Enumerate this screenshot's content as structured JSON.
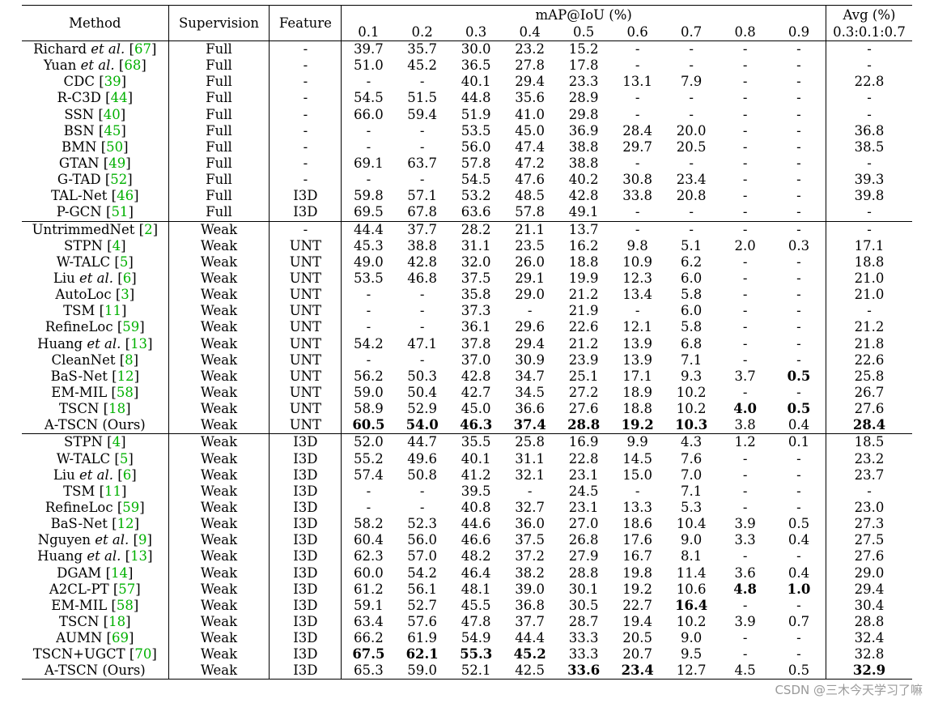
{
  "headers": {
    "method": "Method",
    "supervision": "Supervision",
    "feature": "Feature",
    "map": "mAP@IoU (%)",
    "iou": [
      "0.1",
      "0.2",
      "0.3",
      "0.4",
      "0.5",
      "0.6",
      "0.7",
      "0.8",
      "0.9"
    ],
    "avg_line1": "Avg (%)",
    "avg_line2": "0.3:0.1:0.7"
  },
  "groups": [
    [
      {
        "m": "Richard",
        "et": true,
        "ref": "67",
        "s": "Full",
        "f": "-",
        "v": [
          "39.7",
          "35.7",
          "30.0",
          "23.2",
          "15.2",
          "-",
          "-",
          "-",
          "-",
          "-"
        ]
      },
      {
        "m": "Yuan",
        "et": true,
        "ref": "68",
        "s": "Full",
        "f": "-",
        "v": [
          "51.0",
          "45.2",
          "36.5",
          "27.8",
          "17.8",
          "-",
          "-",
          "-",
          "-",
          "-"
        ]
      },
      {
        "m": "CDC",
        "ref": "39",
        "s": "Full",
        "f": "-",
        "v": [
          "-",
          "-",
          "40.1",
          "29.4",
          "23.3",
          "13.1",
          "7.9",
          "-",
          "-",
          "22.8"
        ]
      },
      {
        "m": "R-C3D",
        "ref": "44",
        "s": "Full",
        "f": "-",
        "v": [
          "54.5",
          "51.5",
          "44.8",
          "35.6",
          "28.9",
          "-",
          "-",
          "-",
          "-",
          "-"
        ]
      },
      {
        "m": "SSN",
        "ref": "40",
        "s": "Full",
        "f": "-",
        "v": [
          "66.0",
          "59.4",
          "51.9",
          "41.0",
          "29.8",
          "-",
          "-",
          "-",
          "-",
          "-"
        ]
      },
      {
        "m": "BSN",
        "ref": "45",
        "s": "Full",
        "f": "-",
        "v": [
          "-",
          "-",
          "53.5",
          "45.0",
          "36.9",
          "28.4",
          "20.0",
          "-",
          "-",
          "36.8"
        ]
      },
      {
        "m": "BMN",
        "ref": "50",
        "s": "Full",
        "f": "-",
        "v": [
          "-",
          "-",
          "56.0",
          "47.4",
          "38.8",
          "29.7",
          "20.5",
          "-",
          "-",
          "38.5"
        ]
      },
      {
        "m": "GTAN",
        "ref": "49",
        "s": "Full",
        "f": "-",
        "v": [
          "69.1",
          "63.7",
          "57.8",
          "47.2",
          "38.8",
          "-",
          "-",
          "-",
          "-",
          "-"
        ]
      },
      {
        "m": "G-TAD",
        "ref": "52",
        "s": "Full",
        "f": "-",
        "v": [
          "-",
          "-",
          "54.5",
          "47.6",
          "40.2",
          "30.8",
          "23.4",
          "-",
          "-",
          "39.3"
        ]
      },
      {
        "m": "TAL-Net",
        "ref": "46",
        "s": "Full",
        "f": "I3D",
        "v": [
          "59.8",
          "57.1",
          "53.2",
          "48.5",
          "42.8",
          "33.8",
          "20.8",
          "-",
          "-",
          "39.8"
        ]
      },
      {
        "m": "P-GCN",
        "ref": "51",
        "s": "Full",
        "f": "I3D",
        "v": [
          "69.5",
          "67.8",
          "63.6",
          "57.8",
          "49.1",
          "-",
          "-",
          "-",
          "-",
          "-"
        ]
      }
    ],
    [
      {
        "m": "UntrimmedNet",
        "ref": "2",
        "s": "Weak",
        "f": "-",
        "v": [
          "44.4",
          "37.7",
          "28.2",
          "21.1",
          "13.7",
          "-",
          "-",
          "-",
          "-",
          "-"
        ]
      },
      {
        "m": "STPN",
        "ref": "4",
        "s": "Weak",
        "f": "UNT",
        "v": [
          "45.3",
          "38.8",
          "31.1",
          "23.5",
          "16.2",
          "9.8",
          "5.1",
          "2.0",
          "0.3",
          "17.1"
        ]
      },
      {
        "m": "W-TALC",
        "ref": "5",
        "s": "Weak",
        "f": "UNT",
        "v": [
          "49.0",
          "42.8",
          "32.0",
          "26.0",
          "18.8",
          "10.9",
          "6.2",
          "-",
          "-",
          "18.8"
        ]
      },
      {
        "m": "Liu",
        "et": true,
        "ref": "6",
        "s": "Weak",
        "f": "UNT",
        "v": [
          "53.5",
          "46.8",
          "37.5",
          "29.1",
          "19.9",
          "12.3",
          "6.0",
          "-",
          "-",
          "21.0"
        ]
      },
      {
        "m": "AutoLoc",
        "ref": "3",
        "s": "Weak",
        "f": "UNT",
        "v": [
          "-",
          "-",
          "35.8",
          "29.0",
          "21.2",
          "13.4",
          "5.8",
          "-",
          "-",
          "21.0"
        ]
      },
      {
        "m": "TSM",
        "ref": "11",
        "s": "Weak",
        "f": "UNT",
        "v": [
          "-",
          "-",
          "37.3",
          "-",
          "21.9",
          "-",
          "6.0",
          "-",
          "-",
          "-"
        ]
      },
      {
        "m": "RefineLoc",
        "ref": "59",
        "s": "Weak",
        "f": "UNT",
        "v": [
          "-",
          "-",
          "36.1",
          "29.6",
          "22.6",
          "12.1",
          "5.8",
          "-",
          "-",
          "21.2"
        ]
      },
      {
        "m": "Huang",
        "et": true,
        "ref": "13",
        "s": "Weak",
        "f": "UNT",
        "v": [
          "54.2",
          "47.1",
          "37.8",
          "29.4",
          "21.2",
          "13.9",
          "6.8",
          "-",
          "-",
          "21.8"
        ]
      },
      {
        "m": "CleanNet",
        "ref": "8",
        "s": "Weak",
        "f": "UNT",
        "v": [
          "-",
          "-",
          "37.0",
          "30.9",
          "23.9",
          "13.9",
          "7.1",
          "-",
          "-",
          "22.6"
        ]
      },
      {
        "m": "BaS-Net",
        "ref": "12",
        "s": "Weak",
        "f": "UNT",
        "v": [
          "56.2",
          "50.3",
          "42.8",
          "34.7",
          "25.1",
          "17.1",
          "9.3",
          "3.7",
          "0.5",
          "25.8"
        ],
        "bold": [
          8
        ]
      },
      {
        "m": "EM-MIL",
        "ref": "58",
        "s": "Weak",
        "f": "UNT",
        "v": [
          "59.0",
          "50.4",
          "42.7",
          "34.5",
          "27.2",
          "18.9",
          "10.2",
          "-",
          "-",
          "26.7"
        ]
      },
      {
        "m": "TSCN",
        "ref": "18",
        "s": "Weak",
        "f": "UNT",
        "v": [
          "58.9",
          "52.9",
          "45.0",
          "36.6",
          "27.6",
          "18.8",
          "10.2",
          "4.0",
          "0.5",
          "27.6"
        ],
        "bold": [
          7,
          8
        ]
      },
      {
        "m": "A-TSCN (Ours)",
        "s": "Weak",
        "f": "UNT",
        "v": [
          "60.5",
          "54.0",
          "46.3",
          "37.4",
          "28.8",
          "19.2",
          "10.3",
          "3.8",
          "0.4",
          "28.4"
        ],
        "bold": [
          0,
          1,
          2,
          3,
          4,
          5,
          6,
          9
        ]
      }
    ],
    [
      {
        "m": "STPN",
        "ref": "4",
        "s": "Weak",
        "f": "I3D",
        "v": [
          "52.0",
          "44.7",
          "35.5",
          "25.8",
          "16.9",
          "9.9",
          "4.3",
          "1.2",
          "0.1",
          "18.5"
        ]
      },
      {
        "m": "W-TALC",
        "ref": "5",
        "s": "Weak",
        "f": "I3D",
        "v": [
          "55.2",
          "49.6",
          "40.1",
          "31.1",
          "22.8",
          "14.5",
          "7.6",
          "-",
          "-",
          "23.2"
        ]
      },
      {
        "m": "Liu",
        "et": true,
        "ref": "6",
        "s": "Weak",
        "f": "I3D",
        "v": [
          "57.4",
          "50.8",
          "41.2",
          "32.1",
          "23.1",
          "15.0",
          "7.0",
          "-",
          "-",
          "23.7"
        ]
      },
      {
        "m": "TSM",
        "ref": "11",
        "s": "Weak",
        "f": "I3D",
        "v": [
          "-",
          "-",
          "39.5",
          "-",
          "24.5",
          "-",
          "7.1",
          "-",
          "-",
          "-"
        ]
      },
      {
        "m": "RefineLoc",
        "ref": "59",
        "s": "Weak",
        "f": "I3D",
        "v": [
          "-",
          "-",
          "40.8",
          "32.7",
          "23.1",
          "13.3",
          "5.3",
          "-",
          "-",
          "23.0"
        ]
      },
      {
        "m": "BaS-Net",
        "ref": "12",
        "s": "Weak",
        "f": "I3D",
        "v": [
          "58.2",
          "52.3",
          "44.6",
          "36.0",
          "27.0",
          "18.6",
          "10.4",
          "3.9",
          "0.5",
          "27.3"
        ]
      },
      {
        "m": "Nguyen",
        "et": true,
        "ref": "9",
        "s": "Weak",
        "f": "I3D",
        "v": [
          "60.4",
          "56.0",
          "46.6",
          "37.5",
          "26.8",
          "17.6",
          "9.0",
          "3.3",
          "0.4",
          "27.5"
        ]
      },
      {
        "m": "Huang",
        "et": true,
        "ref": "13",
        "s": "Weak",
        "f": "I3D",
        "v": [
          "62.3",
          "57.0",
          "48.2",
          "37.2",
          "27.9",
          "16.7",
          "8.1",
          "-",
          "-",
          "27.6"
        ]
      },
      {
        "m": "DGAM",
        "ref": "14",
        "s": "Weak",
        "f": "I3D",
        "v": [
          "60.0",
          "54.2",
          "46.4",
          "38.2",
          "28.8",
          "19.8",
          "11.4",
          "3.6",
          "0.4",
          "29.0"
        ]
      },
      {
        "m": "A2CL-PT",
        "ref": "57",
        "s": "Weak",
        "f": "I3D",
        "v": [
          "61.2",
          "56.1",
          "48.1",
          "39.0",
          "30.1",
          "19.2",
          "10.6",
          "4.8",
          "1.0",
          "29.4"
        ],
        "bold": [
          7,
          8
        ]
      },
      {
        "m": "EM-MIL",
        "ref": "58",
        "s": "Weak",
        "f": "I3D",
        "v": [
          "59.1",
          "52.7",
          "45.5",
          "36.8",
          "30.5",
          "22.7",
          "16.4",
          "-",
          "-",
          "30.4"
        ],
        "bold": [
          6
        ]
      },
      {
        "m": "TSCN",
        "ref": "18",
        "s": "Weak",
        "f": "I3D",
        "v": [
          "63.4",
          "57.6",
          "47.8",
          "37.7",
          "28.7",
          "19.4",
          "10.2",
          "3.9",
          "0.7",
          "28.8"
        ]
      },
      {
        "m": "AUMN",
        "ref": "69",
        "s": "Weak",
        "f": "I3D",
        "v": [
          "66.2",
          "61.9",
          "54.9",
          "44.4",
          "33.3",
          "20.5",
          "9.0",
          "-",
          "-",
          "32.4"
        ]
      },
      {
        "m": "TSCN+UGCT",
        "ref": "70",
        "s": "Weak",
        "f": "I3D",
        "v": [
          "67.5",
          "62.1",
          "55.3",
          "45.2",
          "33.3",
          "20.7",
          "9.5",
          "-",
          "-",
          "32.8"
        ],
        "bold": [
          0,
          1,
          2,
          3
        ]
      },
      {
        "m": "A-TSCN (Ours)",
        "s": "Weak",
        "f": "I3D",
        "v": [
          "65.3",
          "59.0",
          "52.1",
          "42.5",
          "33.6",
          "23.4",
          "12.7",
          "4.5",
          "0.5",
          "32.9"
        ],
        "bold": [
          4,
          5,
          9
        ]
      }
    ]
  ],
  "et_al": "et al.",
  "watermark": "CSDN @三木今天学习了嘛"
}
